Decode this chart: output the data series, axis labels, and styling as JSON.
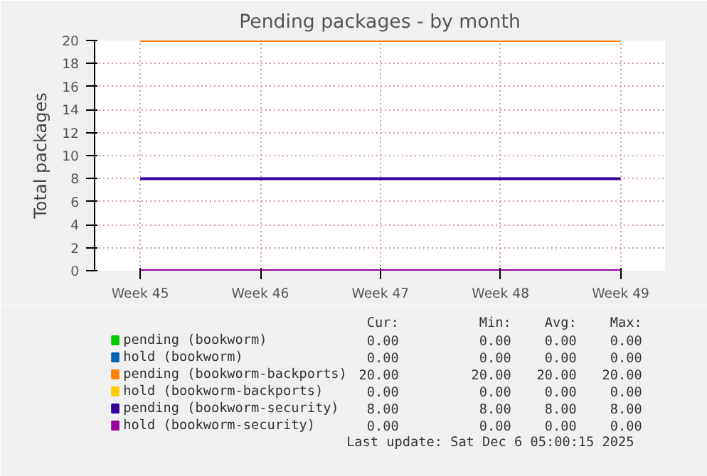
{
  "chart_data": {
    "type": "line",
    "title": "Pending packages - by month",
    "ylabel": "Total packages",
    "categories": [
      "Week 45",
      "Week 46",
      "Week 47",
      "Week 48",
      "Week 49"
    ],
    "ylim": [
      0,
      20
    ],
    "yticks": [
      0,
      2,
      4,
      6,
      8,
      10,
      12,
      14,
      16,
      18,
      20
    ],
    "grid": true,
    "legend": "bottom",
    "series": [
      {
        "name": "pending (bookworm)",
        "color": "#00cc00",
        "values": [
          null,
          null,
          null,
          null,
          null
        ]
      },
      {
        "name": "hold (bookworm)",
        "color": "#0066b3",
        "values": [
          null,
          null,
          null,
          null,
          null
        ]
      },
      {
        "name": "pending (bookworm-backports)",
        "color": "#ff8000",
        "values": [
          20,
          20,
          20,
          20,
          20
        ]
      },
      {
        "name": "hold (bookworm-backports)",
        "color": "#ffcc00",
        "values": [
          null,
          null,
          null,
          null,
          null
        ]
      },
      {
        "name": "pending (bookworm-security)",
        "color": "#330099",
        "values": [
          8,
          8,
          8,
          8,
          8
        ]
      },
      {
        "name": "hold (bookworm-security)",
        "color": "#990099",
        "values": [
          0,
          0,
          0,
          0,
          0
        ]
      }
    ],
    "annotations": [
      "Cur: Min: Avg: Max:",
      "0.00 0.00 0.00 0.00",
      "0.00 0.00 0.00 0.00",
      "20.00 20.00 20.00 20.00",
      "0.00 0.00 0.00 0.00",
      "8.00 8.00 8.00 8.00",
      "0.00 0.00 0.00 0.00",
      "Last update: Sat Dec  6 05:00:15 2025"
    ]
  }
}
